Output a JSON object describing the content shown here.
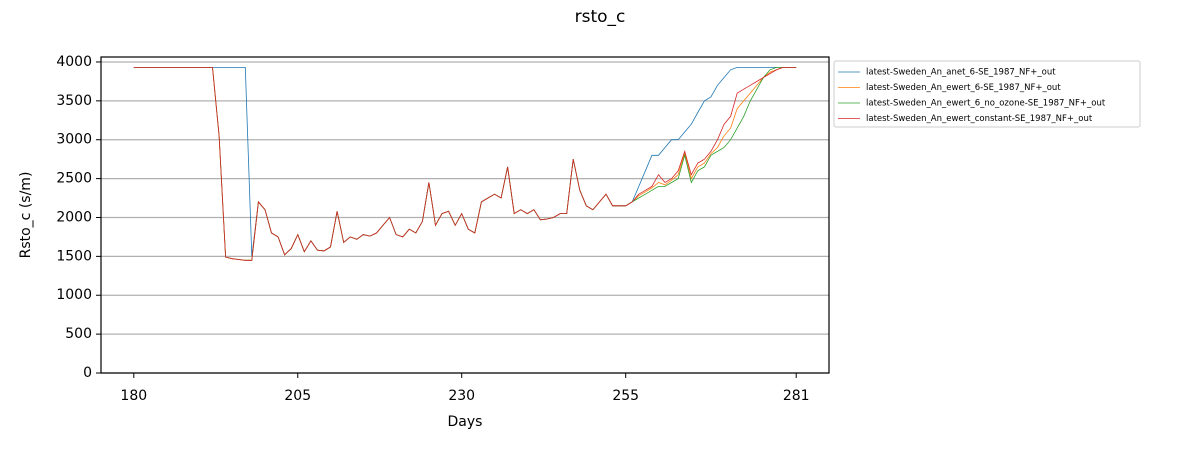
{
  "chart_data": {
    "type": "line",
    "title": "rsto_c",
    "x_label": "Days",
    "y_label": "Rsto_c (s/m)",
    "x": [
      180,
      181,
      182,
      183,
      184,
      185,
      186,
      187,
      188,
      189,
      190,
      191,
      192,
      193,
      194,
      195,
      196,
      197,
      198,
      199,
      200,
      201,
      202,
      203,
      204,
      205,
      206,
      207,
      208,
      209,
      210,
      211,
      212,
      213,
      214,
      215,
      216,
      217,
      218,
      219,
      220,
      221,
      222,
      223,
      224,
      225,
      226,
      227,
      228,
      229,
      230,
      231,
      232,
      233,
      234,
      235,
      236,
      237,
      238,
      239,
      240,
      241,
      242,
      243,
      244,
      245,
      246,
      247,
      248,
      249,
      250,
      251,
      252,
      253,
      254,
      255,
      256,
      257,
      258,
      259,
      260,
      261,
      262,
      263,
      264,
      265,
      266,
      267,
      268,
      269,
      270,
      271,
      272,
      273,
      274,
      275,
      276,
      277,
      278,
      279,
      280,
      281
    ],
    "series": [
      {
        "name": "latest-Sweden_An_anet_6-SE_1987_NF+_out",
        "color": "#1f77b4",
        "values": [
          3930,
          3930,
          3930,
          3930,
          3930,
          3930,
          3930,
          3930,
          3930,
          3930,
          3930,
          3930,
          3930,
          3930,
          3930,
          3930,
          3930,
          3930,
          1500,
          2200,
          2100,
          1800,
          1750,
          1520,
          1600,
          1780,
          1560,
          1700,
          1580,
          1570,
          1620,
          2080,
          1680,
          1750,
          1720,
          1780,
          1760,
          1800,
          1900,
          2000,
          1780,
          1750,
          1850,
          1800,
          1950,
          2450,
          1900,
          2050,
          2080,
          1900,
          2050,
          1850,
          1800,
          2200,
          2250,
          2300,
          2250,
          2650,
          2050,
          2100,
          2050,
          2100,
          1970,
          1980,
          2000,
          2050,
          2050,
          2750,
          2350,
          2150,
          2100,
          2200,
          2300,
          2150,
          2150,
          2150,
          2200,
          2400,
          2600,
          2800,
          2800,
          2900,
          3000,
          3000,
          3100,
          3200,
          3350,
          3500,
          3550,
          3700,
          3800,
          3900,
          3930,
          3930,
          3930,
          3930,
          3930,
          3930,
          3930,
          3930,
          3930,
          3930
        ]
      },
      {
        "name": "latest-Sweden_An_ewert_6-SE_1987_NF+_out",
        "color": "#ff7f0e",
        "values": [
          3930,
          3930,
          3930,
          3930,
          3930,
          3930,
          3930,
          3930,
          3930,
          3930,
          3930,
          3930,
          3930,
          3050,
          1490,
          1470,
          1460,
          1450,
          1450,
          2200,
          2100,
          1800,
          1750,
          1520,
          1600,
          1780,
          1560,
          1700,
          1580,
          1570,
          1620,
          2080,
          1680,
          1750,
          1720,
          1780,
          1760,
          1800,
          1900,
          2000,
          1780,
          1750,
          1850,
          1800,
          1950,
          2450,
          1900,
          2050,
          2080,
          1900,
          2050,
          1850,
          1800,
          2200,
          2250,
          2300,
          2250,
          2650,
          2050,
          2100,
          2050,
          2100,
          1970,
          1980,
          2000,
          2050,
          2050,
          2750,
          2350,
          2150,
          2100,
          2200,
          2300,
          2150,
          2150,
          2150,
          2200,
          2280,
          2330,
          2380,
          2450,
          2420,
          2480,
          2550,
          2830,
          2500,
          2650,
          2700,
          2820,
          2900,
          3050,
          3150,
          3400,
          3500,
          3600,
          3700,
          3800,
          3870,
          3900,
          3930,
          3930,
          3930
        ]
      },
      {
        "name": "latest-Sweden_An_ewert_6_no_ozone-SE_1987_NF+_out",
        "color": "#2ca02c",
        "values": [
          3930,
          3930,
          3930,
          3930,
          3930,
          3930,
          3930,
          3930,
          3930,
          3930,
          3930,
          3930,
          3930,
          3050,
          1490,
          1470,
          1460,
          1450,
          1450,
          2200,
          2100,
          1800,
          1750,
          1520,
          1600,
          1780,
          1560,
          1700,
          1580,
          1570,
          1620,
          2080,
          1680,
          1750,
          1720,
          1780,
          1760,
          1800,
          1900,
          2000,
          1780,
          1750,
          1850,
          1800,
          1950,
          2450,
          1900,
          2050,
          2080,
          1900,
          2050,
          1850,
          1800,
          2200,
          2250,
          2300,
          2250,
          2650,
          2050,
          2100,
          2050,
          2100,
          1970,
          1980,
          2000,
          2050,
          2050,
          2750,
          2350,
          2150,
          2100,
          2200,
          2300,
          2150,
          2150,
          2150,
          2200,
          2250,
          2300,
          2350,
          2400,
          2400,
          2450,
          2500,
          2800,
          2450,
          2600,
          2650,
          2800,
          2850,
          2900,
          3000,
          3150,
          3300,
          3500,
          3650,
          3800,
          3900,
          3930,
          3930,
          3930,
          3930
        ]
      },
      {
        "name": "latest-Sweden_An_ewert_constant-SE_1987_NF+_out",
        "color": "#d62728",
        "values": [
          3930,
          3930,
          3930,
          3930,
          3930,
          3930,
          3930,
          3930,
          3930,
          3930,
          3930,
          3930,
          3930,
          3050,
          1490,
          1470,
          1460,
          1450,
          1450,
          2200,
          2100,
          1800,
          1750,
          1520,
          1600,
          1780,
          1560,
          1700,
          1580,
          1570,
          1620,
          2080,
          1680,
          1750,
          1720,
          1780,
          1760,
          1800,
          1900,
          2000,
          1780,
          1750,
          1850,
          1800,
          1950,
          2450,
          1900,
          2050,
          2080,
          1900,
          2050,
          1850,
          1800,
          2200,
          2250,
          2300,
          2250,
          2650,
          2050,
          2100,
          2050,
          2100,
          1970,
          1980,
          2000,
          2050,
          2050,
          2750,
          2350,
          2150,
          2100,
          2200,
          2300,
          2150,
          2150,
          2150,
          2200,
          2300,
          2350,
          2400,
          2550,
          2450,
          2500,
          2600,
          2850,
          2550,
          2700,
          2750,
          2850,
          3000,
          3200,
          3300,
          3600,
          3650,
          3700,
          3750,
          3800,
          3850,
          3900,
          3930,
          3930,
          3930
        ]
      }
    ],
    "xlim": [
      175,
      286
    ],
    "xticks": [
      180,
      205,
      230,
      255,
      281
    ],
    "ylim": [
      0,
      4064
    ],
    "yticks": [
      0,
      500,
      1000,
      1500,
      2000,
      2500,
      3000,
      3500,
      4000
    ],
    "grid": true,
    "legend": "outside-right"
  }
}
